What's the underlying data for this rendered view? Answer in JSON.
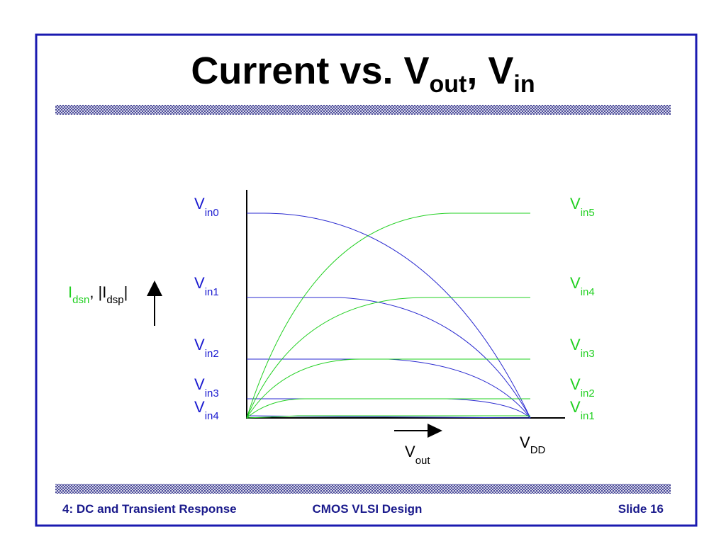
{
  "title": {
    "main": "Current vs. V",
    "sub1": "out",
    "mid": ", V",
    "sub2": "in"
  },
  "diagram": {
    "y_label": {
      "i1": "I",
      "s1": "dsn",
      "sep": ", |I",
      "s2": "dsp",
      "end": "|"
    },
    "x_label": {
      "main": "V",
      "sub": "out"
    },
    "vdd_label": {
      "main": "V",
      "sub": "DD"
    },
    "left_labels": [
      {
        "main": "V",
        "sub": "in0"
      },
      {
        "main": "V",
        "sub": "in1"
      },
      {
        "main": "V",
        "sub": "in2"
      },
      {
        "main": "V",
        "sub": "in3"
      },
      {
        "main": "V",
        "sub": "in4"
      }
    ],
    "right_labels": [
      {
        "main": "V",
        "sub": "in5"
      },
      {
        "main": "V",
        "sub": "in4"
      },
      {
        "main": "V",
        "sub": "in3"
      },
      {
        "main": "V",
        "sub": "in2"
      },
      {
        "main": "V",
        "sub": "in1"
      }
    ]
  },
  "footer": {
    "left": "4: DC and Transient Response",
    "center": "CMOS VLSI Design",
    "right": "Slide 16"
  }
}
